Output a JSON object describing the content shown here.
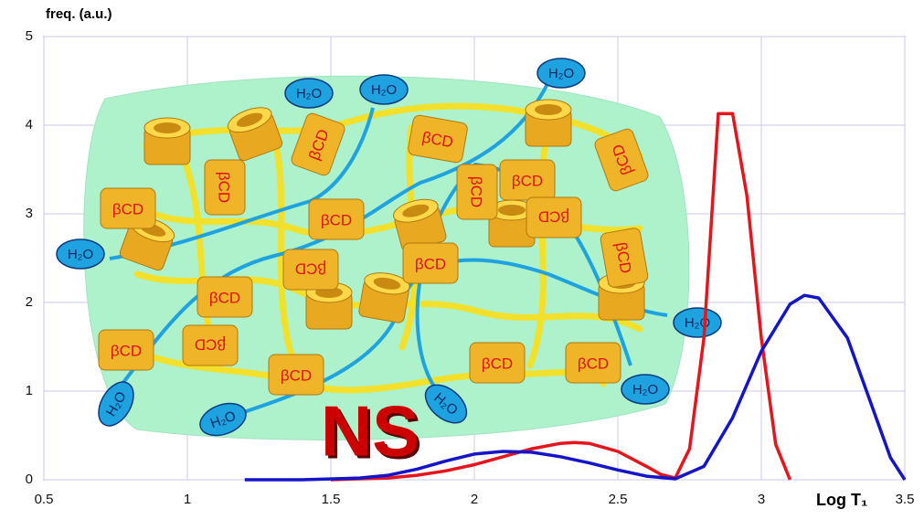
{
  "chart_data": {
    "type": "line",
    "y_label": "freq. (a.u.)",
    "x_label": "Log T₁",
    "xlim": [
      0.5,
      3.5
    ],
    "xticks": [
      0.5,
      1,
      1.5,
      2,
      2.5,
      3,
      3.5
    ],
    "ylim": [
      0,
      5
    ],
    "yticks": [
      0,
      1,
      2,
      3,
      4,
      5
    ],
    "grid": true,
    "series": [
      {
        "color": "#e8141c",
        "x": [
          1.5,
          1.6,
          1.7,
          1.8,
          1.9,
          2.0,
          2.1,
          2.2,
          2.3,
          2.35,
          2.4,
          2.5,
          2.6,
          2.65,
          2.7,
          2.75,
          2.8,
          2.85,
          2.9,
          2.95,
          3.0,
          3.05,
          3.1
        ],
        "values": [
          0,
          0.01,
          0.02,
          0.05,
          0.1,
          0.17,
          0.26,
          0.35,
          0.41,
          0.42,
          0.41,
          0.32,
          0.15,
          0.06,
          0.02,
          0.35,
          1.6,
          4.13,
          4.13,
          3.2,
          1.6,
          0.4,
          0
        ]
      },
      {
        "color": "#1414c8",
        "x": [
          1.2,
          1.4,
          1.6,
          1.7,
          1.8,
          1.9,
          2.0,
          2.1,
          2.2,
          2.3,
          2.4,
          2.5,
          2.6,
          2.7,
          2.8,
          2.9,
          3.0,
          3.1,
          3.15,
          3.2,
          3.3,
          3.4,
          3.45,
          3.5
        ],
        "values": [
          0,
          0,
          0.02,
          0.05,
          0.12,
          0.21,
          0.29,
          0.32,
          0.31,
          0.26,
          0.19,
          0.11,
          0.04,
          0.01,
          0.15,
          0.7,
          1.45,
          1.98,
          2.08,
          2.05,
          1.6,
          0.7,
          0.25,
          0
        ]
      }
    ],
    "illustration": {
      "label": "NS",
      "water_labels": [
        "H₂O",
        "H₂O",
        "H₂O",
        "H₂O",
        "H₂O",
        "H₂O",
        "H₂O",
        "H₂O",
        "H₂O"
      ],
      "cd_labels": [
        "βCD",
        "βCD",
        "βCD",
        "βCD",
        "βCD",
        "βCD",
        "βCD",
        "βCD",
        "βCD",
        "βCD",
        "βCD",
        "βCD",
        "βCD",
        "βCD",
        "βCD",
        "βCD",
        "βCD",
        "βCD"
      ]
    }
  }
}
